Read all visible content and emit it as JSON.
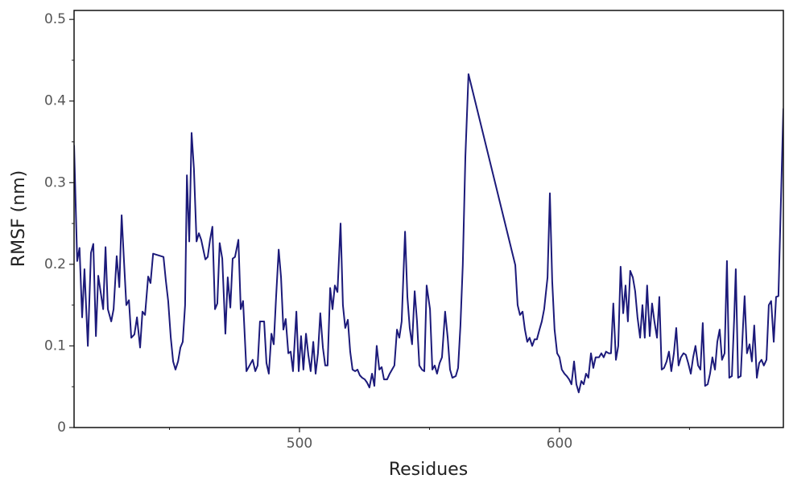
{
  "chart_data": {
    "type": "line",
    "xlabel": "Residues",
    "ylabel": "RMSF (nm)",
    "color": "#1c1a7a",
    "xlim": [
      413.3,
      686.1
    ],
    "ylim": [
      0,
      0.511
    ],
    "xticks": [
      500,
      600
    ],
    "xminor_ticks": [
      450,
      550,
      650
    ],
    "yticks": [
      0,
      0.1,
      0.2,
      0.3,
      0.4,
      0.5
    ],
    "yminor_ticks": [
      0.05,
      0.15,
      0.25,
      0.35,
      0.45
    ],
    "x": [
      413.3,
      414.5,
      415.4,
      416.4,
      417.3,
      418.6,
      419.8,
      420.7,
      421.7,
      422.6,
      423.8,
      424.5,
      425.4,
      426.3,
      427.6,
      428.5,
      429.7,
      430.7,
      431.6,
      432.5,
      433.4,
      434.4,
      435.3,
      436.5,
      437.5,
      438.7,
      439.6,
      440.6,
      441.8,
      442.7,
      443.7,
      446.7,
      447.7,
      448.6,
      449.5,
      450.5,
      451.4,
      452.3,
      453.3,
      454.2,
      455.1,
      456.0,
      456.7,
      457.6,
      458.5,
      459.4,
      460.4,
      461.3,
      462.2,
      463.8,
      464.7,
      465.6,
      466.5,
      467.5,
      468.4,
      469.3,
      470.3,
      471.5,
      472.4,
      473.4,
      474.3,
      475.2,
      476.5,
      477.4,
      478.3,
      479.6,
      480.8,
      482.0,
      483.0,
      483.9,
      484.8,
      486.4,
      487.3,
      488.2,
      489.2,
      490.1,
      491.0,
      492.0,
      492.9,
      493.8,
      494.7,
      495.7,
      496.6,
      497.5,
      498.8,
      499.7,
      500.6,
      501.5,
      502.5,
      503.4,
      504.3,
      505.3,
      506.2,
      507.1,
      508.0,
      509.0,
      509.9,
      510.8,
      511.8,
      512.7,
      513.6,
      514.6,
      515.8,
      516.7,
      517.6,
      518.6,
      519.5,
      520.4,
      521.4,
      522.3,
      523.2,
      524.1,
      525.1,
      526.0,
      526.9,
      527.9,
      528.8,
      529.7,
      530.7,
      531.6,
      532.5,
      533.7,
      534.7,
      535.6,
      536.5,
      537.5,
      538.4,
      539.3,
      540.6,
      541.5,
      542.4,
      543.3,
      544.3,
      545.2,
      546.1,
      547.1,
      548.0,
      548.9,
      550.2,
      551.1,
      552.0,
      552.9,
      553.9,
      554.8,
      556.0,
      557.0,
      557.9,
      558.8,
      560.1,
      561.0,
      561.9,
      562.8,
      563.8,
      565.0,
      583.0,
      583.9,
      584.8,
      585.8,
      586.7,
      587.6,
      588.5,
      589.5,
      590.4,
      591.3,
      592.3,
      593.2,
      594.1,
      595.4,
      596.3,
      597.2,
      598.1,
      599.1,
      600.0,
      600.9,
      601.9,
      602.8,
      603.7,
      604.6,
      605.6,
      606.5,
      607.4,
      608.4,
      609.3,
      610.2,
      611.1,
      612.1,
      613.0,
      613.9,
      615.2,
      616.1,
      617.0,
      617.9,
      618.9,
      619.8,
      620.7,
      621.7,
      622.6,
      623.5,
      624.5,
      625.4,
      626.3,
      627.2,
      628.2,
      629.1,
      630.0,
      631.0,
      631.9,
      632.8,
      633.7,
      634.7,
      635.6,
      636.5,
      637.5,
      638.4,
      639.3,
      640.2,
      641.2,
      642.1,
      643.0,
      644.0,
      644.9,
      645.8,
      646.7,
      647.7,
      648.6,
      649.5,
      650.5,
      651.4,
      652.3,
      653.3,
      654.2,
      655.1,
      656.0,
      657.0,
      657.9,
      658.8,
      659.8,
      660.7,
      661.6,
      662.5,
      663.5,
      664.4,
      665.3,
      666.3,
      667.2,
      667.8,
      668.7,
      669.7,
      670.6,
      671.2,
      672.1,
      673.1,
      674.0,
      674.9,
      675.9,
      676.8,
      677.7,
      678.6,
      679.6,
      680.5,
      681.4,
      682.4,
      683.3,
      684.2,
      685.2,
      686.1
    ],
    "values": [
      0.346,
      0.204,
      0.22,
      0.135,
      0.194,
      0.1,
      0.214,
      0.225,
      0.112,
      0.186,
      0.16,
      0.145,
      0.221,
      0.145,
      0.13,
      0.145,
      0.21,
      0.172,
      0.26,
      0.204,
      0.15,
      0.156,
      0.11,
      0.114,
      0.135,
      0.098,
      0.142,
      0.138,
      0.185,
      0.177,
      0.213,
      0.21,
      0.209,
      0.18,
      0.155,
      0.11,
      0.081,
      0.071,
      0.081,
      0.098,
      0.105,
      0.15,
      0.309,
      0.228,
      0.361,
      0.317,
      0.228,
      0.238,
      0.23,
      0.206,
      0.209,
      0.23,
      0.246,
      0.145,
      0.152,
      0.226,
      0.207,
      0.115,
      0.184,
      0.147,
      0.207,
      0.209,
      0.23,
      0.145,
      0.155,
      0.069,
      0.076,
      0.083,
      0.069,
      0.076,
      0.13,
      0.13,
      0.079,
      0.066,
      0.115,
      0.102,
      0.16,
      0.218,
      0.184,
      0.12,
      0.133,
      0.091,
      0.093,
      0.069,
      0.142,
      0.069,
      0.112,
      0.071,
      0.115,
      0.089,
      0.069,
      0.105,
      0.066,
      0.091,
      0.14,
      0.098,
      0.076,
      0.076,
      0.171,
      0.145,
      0.174,
      0.166,
      0.25,
      0.15,
      0.122,
      0.132,
      0.093,
      0.071,
      0.069,
      0.071,
      0.064,
      0.061,
      0.059,
      0.055,
      0.049,
      0.066,
      0.051,
      0.1,
      0.071,
      0.074,
      0.059,
      0.059,
      0.066,
      0.071,
      0.076,
      0.12,
      0.11,
      0.13,
      0.24,
      0.16,
      0.122,
      0.102,
      0.167,
      0.13,
      0.076,
      0.071,
      0.069,
      0.174,
      0.145,
      0.071,
      0.076,
      0.066,
      0.079,
      0.086,
      0.142,
      0.11,
      0.071,
      0.061,
      0.063,
      0.073,
      0.125,
      0.199,
      0.332,
      0.433,
      0.199,
      0.15,
      0.138,
      0.142,
      0.12,
      0.105,
      0.11,
      0.1,
      0.108,
      0.108,
      0.12,
      0.13,
      0.145,
      0.184,
      0.287,
      0.179,
      0.12,
      0.091,
      0.086,
      0.071,
      0.066,
      0.063,
      0.059,
      0.053,
      0.081,
      0.053,
      0.043,
      0.057,
      0.053,
      0.066,
      0.061,
      0.091,
      0.073,
      0.086,
      0.086,
      0.091,
      0.086,
      0.093,
      0.091,
      0.091,
      0.152,
      0.083,
      0.1,
      0.197,
      0.14,
      0.174,
      0.13,
      0.192,
      0.184,
      0.167,
      0.135,
      0.11,
      0.15,
      0.11,
      0.174,
      0.112,
      0.152,
      0.13,
      0.11,
      0.16,
      0.071,
      0.073,
      0.081,
      0.093,
      0.069,
      0.091,
      0.122,
      0.076,
      0.086,
      0.091,
      0.089,
      0.079,
      0.066,
      0.086,
      0.1,
      0.076,
      0.071,
      0.128,
      0.051,
      0.053,
      0.066,
      0.086,
      0.071,
      0.105,
      0.12,
      0.083,
      0.091,
      0.204,
      0.061,
      0.063,
      0.135,
      0.194,
      0.061,
      0.063,
      0.125,
      0.161,
      0.091,
      0.102,
      0.081,
      0.125,
      0.061,
      0.079,
      0.083,
      0.076,
      0.083,
      0.15,
      0.155,
      0.105,
      0.16,
      0.161,
      0.282,
      0.391
    ]
  }
}
